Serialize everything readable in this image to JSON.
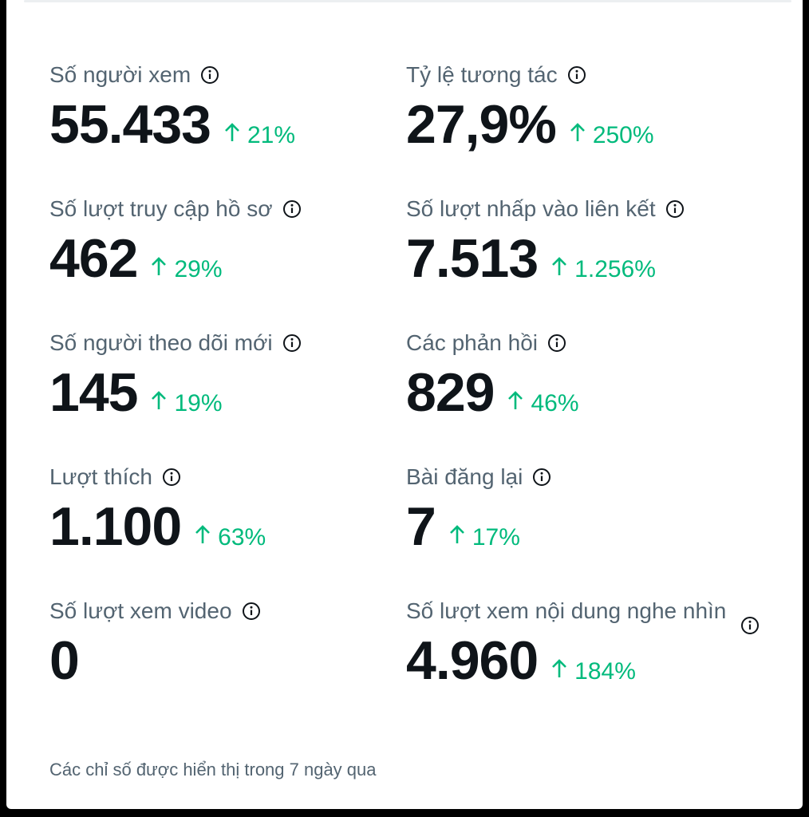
{
  "metrics": {
    "viewers": {
      "label": "Số người xem",
      "value": "55.433",
      "change": "21%"
    },
    "engagement_rate": {
      "label": "Tỷ lệ tương tác",
      "value": "27,9%",
      "change": "250%"
    },
    "profile_visits": {
      "label": "Số lượt truy cập hồ sơ",
      "value": "462",
      "change": "29%"
    },
    "link_clicks": {
      "label": "Số lượt nhấp vào liên kết",
      "value": "7.513",
      "change": "1.256%"
    },
    "new_followers": {
      "label": "Số người theo dõi mới",
      "value": "145",
      "change": "19%"
    },
    "replies": {
      "label": "Các phản hồi",
      "value": "829",
      "change": "46%"
    },
    "likes": {
      "label": "Lượt thích",
      "value": "1.100",
      "change": "63%"
    },
    "reposts": {
      "label": "Bài đăng lại",
      "value": "7",
      "change": "17%"
    },
    "video_views": {
      "label": "Số lượt xem video",
      "value": "0"
    },
    "media_views": {
      "label": "Số lượt xem nội dung nghe nhìn",
      "value": "4.960",
      "change": "184%"
    }
  },
  "footnote": "Các chỉ số được hiển thị trong 7 ngày qua",
  "colors": {
    "positive_change": "#00ba7c",
    "label": "#536471",
    "value": "#0f1419"
  },
  "icons": {
    "info": "info-circle-icon",
    "change": "arrow-up-icon"
  }
}
